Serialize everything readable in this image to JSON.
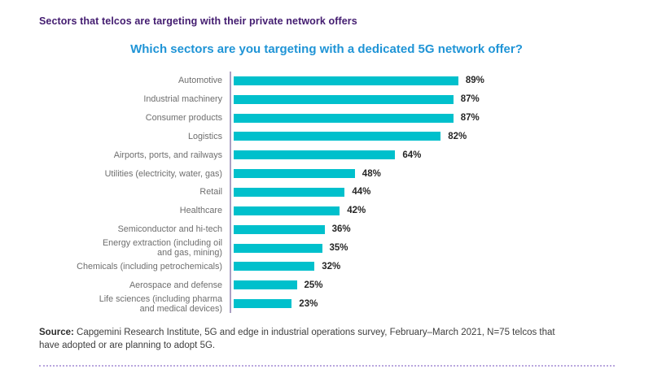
{
  "page": {
    "header": "Sectors that telcos are targeting with their private network offers",
    "source_label": "Source:",
    "source_text": " Capgemini Research Institute, 5G and edge in industrial operations survey, February–March 2021, N=75 telcos that have adopted or are planning to adopt 5G."
  },
  "chart_data": {
    "type": "bar",
    "orientation": "horizontal",
    "title": "Which sectors are you targeting with a dedicated 5G network offer?",
    "categories": [
      "Automotive",
      "Industrial machinery",
      "Consumer products",
      "Logistics",
      "Airports, ports, and railways",
      "Utilities (electricity, water, gas)",
      "Retail",
      "Healthcare",
      "Semiconductor and hi-tech",
      "Energy extraction (including oil\nand gas, mining)",
      "Chemicals (including petrochemicals)",
      "Aerospace and defense",
      "Life sciences (including pharma\nand medical devices)"
    ],
    "values": [
      89,
      87,
      87,
      82,
      64,
      48,
      44,
      42,
      36,
      35,
      32,
      25,
      23
    ],
    "value_suffix": "%",
    "xlim": [
      0,
      100
    ],
    "grid": false,
    "legend": false,
    "colors": {
      "bar": "#00c0cc",
      "axis_line": "#aba0c2",
      "header_text": "#431c70",
      "title_text": "#1f94d6",
      "category_label": "#6e6e6e",
      "value_label": "#262626",
      "divider_dotted": "#b9a6de"
    }
  }
}
